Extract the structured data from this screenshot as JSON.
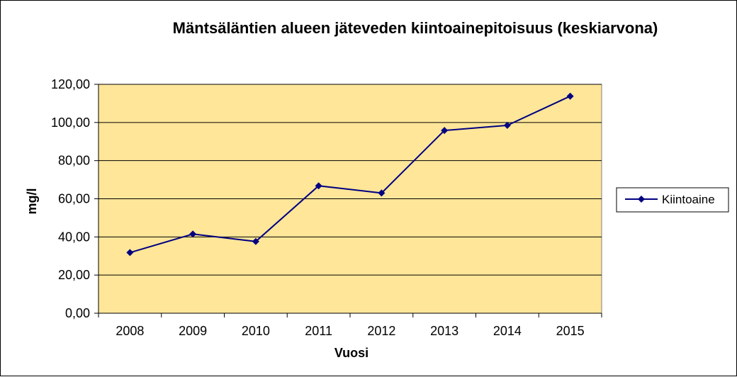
{
  "chart_data": {
    "type": "line",
    "title": "Mäntsäläntien alueen jäteveden kiintoainepitoisuus (keskiarvona)",
    "xlabel": "Vuosi",
    "ylabel": "mg/l",
    "categories": [
      "2008",
      "2009",
      "2010",
      "2011",
      "2012",
      "2013",
      "2014",
      "2015"
    ],
    "series": [
      {
        "name": "Kiintoaine",
        "values": [
          31.8,
          41.5,
          37.6,
          66.8,
          63.0,
          95.8,
          98.5,
          113.8
        ]
      }
    ],
    "ylim": [
      0,
      120
    ],
    "yticks": [
      0,
      20,
      40,
      60,
      80,
      100,
      120
    ],
    "ytick_labels": [
      "0,00",
      "20,00",
      "40,00",
      "60,00",
      "80,00",
      "100,00",
      "120,00"
    ],
    "grid": true,
    "legend_position": "right",
    "colors": {
      "plot_background": "#FFE699",
      "series_line": "#000080",
      "gridline": "#000000"
    }
  }
}
